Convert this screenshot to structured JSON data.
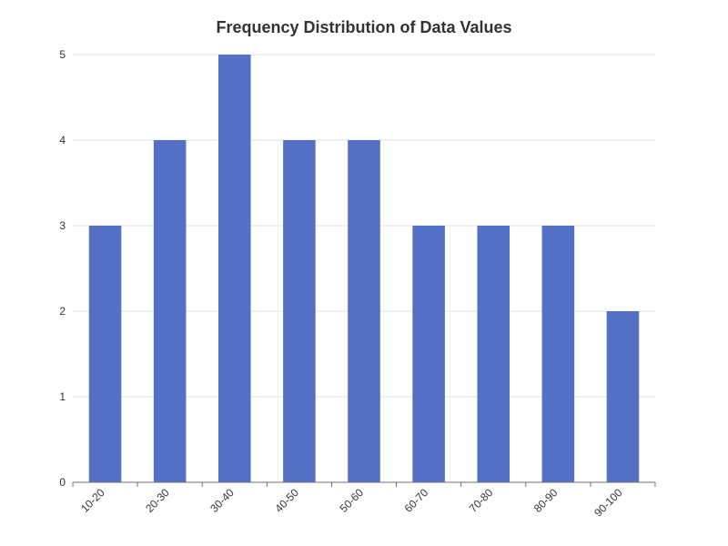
{
  "chart_data": {
    "type": "bar",
    "title": "Frequency Distribution of Data Values",
    "xlabel": "",
    "ylabel": "",
    "categories": [
      "10-20",
      "20-30",
      "30-40",
      "40-50",
      "50-60",
      "60-70",
      "70-80",
      "80-90",
      "90-100"
    ],
    "values": [
      3,
      4,
      5,
      4,
      4,
      3,
      3,
      3,
      2
    ],
    "ylim": [
      0,
      5
    ],
    "yticks": [
      "0",
      "1",
      "2",
      "3",
      "4",
      "5"
    ],
    "grid": true,
    "bar_color": "#5470c6",
    "grid_color": "#e0e0e0",
    "axis_color": "#6e7079",
    "label_color": "#333333"
  }
}
